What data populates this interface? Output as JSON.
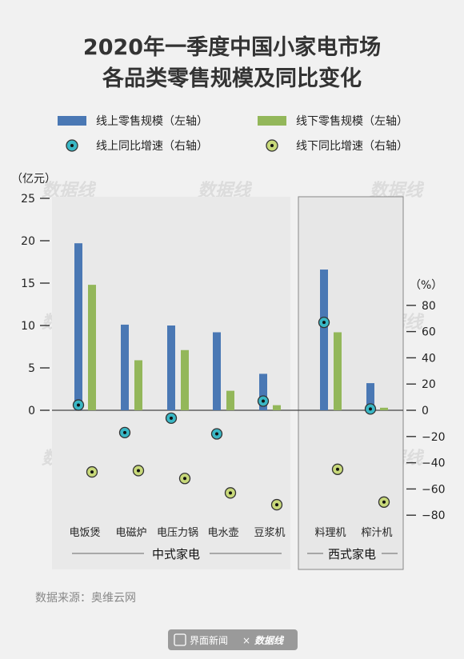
{
  "chart_data": {
    "type": "bar",
    "title_line1": "2020年一季度中国小家电市场",
    "title_line2": "各品类零售规模及同比变化",
    "left_unit": "（亿元）",
    "right_unit": "（%）",
    "categories": [
      "电饭煲",
      "电磁炉",
      "电压力锅",
      "电水壶",
      "豆浆机",
      "料理机",
      "榨汁机"
    ],
    "left_axis": {
      "min": 0,
      "max": 25,
      "ticks": [
        "0",
        "5",
        "10",
        "15",
        "20",
        "25"
      ]
    },
    "right_axis": {
      "min": -80,
      "max": 80,
      "ticks": [
        "−80",
        "−60",
        "−40",
        "−20",
        "0",
        "20",
        "40",
        "60",
        "80"
      ]
    },
    "series": [
      {
        "name": "线上零售规模（左轴）",
        "kind": "bar",
        "color": "#4a78b4",
        "values": [
          19.7,
          10.1,
          10.0,
          9.2,
          4.3,
          16.6,
          3.2
        ]
      },
      {
        "name": "线下零售规模（左轴）",
        "kind": "bar",
        "color": "#93b75a",
        "values": [
          14.8,
          5.9,
          7.1,
          2.3,
          0.6,
          9.2,
          0.3
        ]
      },
      {
        "name": "线上同比增速（右轴）",
        "kind": "dot",
        "color": "#39b7c5",
        "values": [
          4,
          -17,
          -6,
          -18,
          7,
          67,
          1
        ]
      },
      {
        "name": "线下同比增速（右轴）",
        "kind": "dot",
        "color": "#c8d97a",
        "values": [
          -47,
          -46,
          -52,
          -63,
          -72,
          -45,
          -70
        ]
      }
    ],
    "groups": [
      {
        "label": "中式家电",
        "from": 0,
        "to": 4
      },
      {
        "label": "西式家电",
        "from": 5,
        "to": 6
      }
    ],
    "legend_position": "top"
  },
  "source_text": "数据来源：奥维云网",
  "footer": {
    "brand": "界面新闻",
    "separator": "×",
    "brand2": "数据线"
  },
  "watermark": "数据线"
}
